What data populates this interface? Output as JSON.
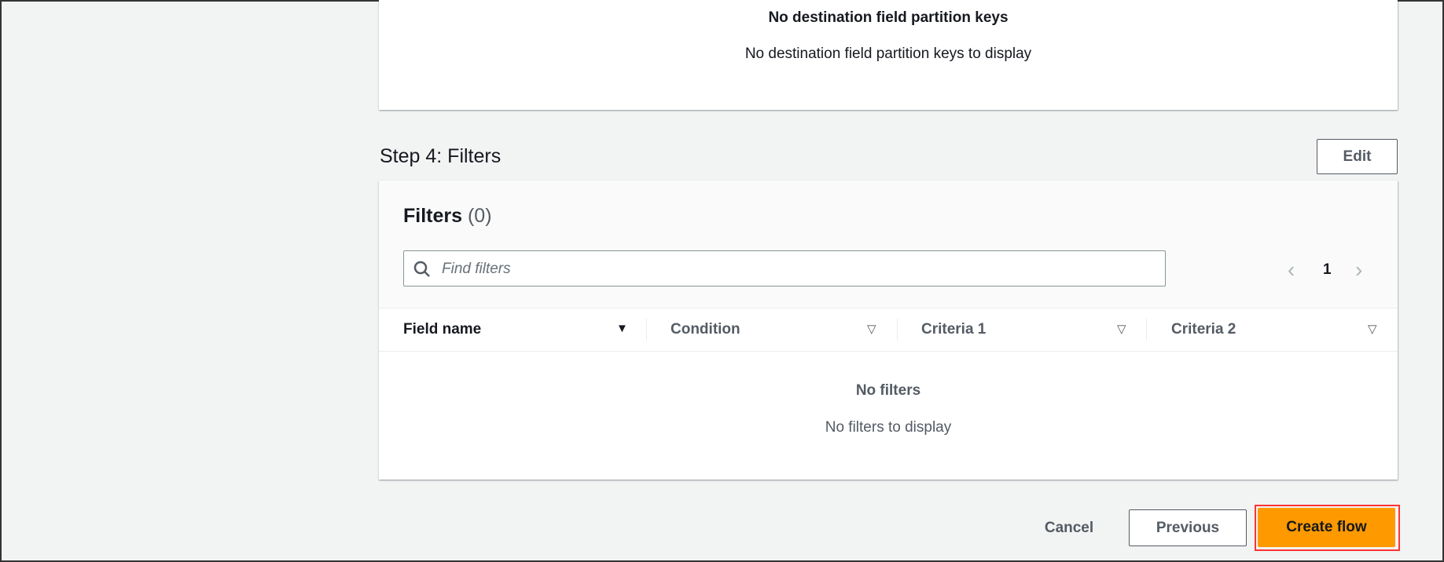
{
  "partition_keys": {
    "title": "No destination field partition keys",
    "message": "No destination field partition keys to display"
  },
  "step4": {
    "title": "Step 4: Filters",
    "edit_label": "Edit"
  },
  "filters": {
    "heading": "Filters",
    "count": "(0)",
    "search_placeholder": "Find filters",
    "page": "1",
    "columns": [
      {
        "label": "Field name"
      },
      {
        "label": "Condition"
      },
      {
        "label": "Criteria 1"
      },
      {
        "label": "Criteria 2"
      }
    ],
    "empty_title": "No filters",
    "empty_message": "No filters to display"
  },
  "footer": {
    "cancel": "Cancel",
    "previous": "Previous",
    "create": "Create flow"
  },
  "colors": {
    "primary": "#ff9900",
    "highlight": "#ff3333"
  }
}
